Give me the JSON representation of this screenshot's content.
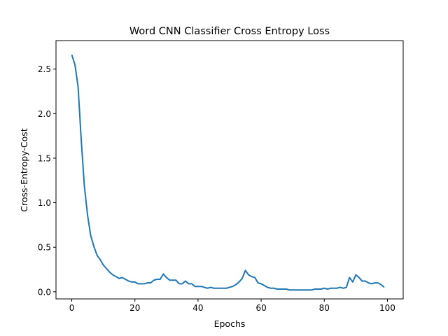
{
  "chart_data": {
    "type": "line",
    "title": "Word CNN Classifier Cross Entropy Loss",
    "xlabel": "Epochs",
    "ylabel": "Cross-Entropy-Cost",
    "xlim": [
      -5,
      105
    ],
    "ylim": [
      -0.08,
      2.82
    ],
    "xticks": [
      0,
      20,
      40,
      60,
      80,
      100
    ],
    "yticks": [
      0.0,
      0.5,
      1.0,
      1.5,
      2.0,
      2.5
    ],
    "xtick_labels": [
      "0",
      "20",
      "40",
      "60",
      "80",
      "100"
    ],
    "ytick_labels": [
      "0.0",
      "0.5",
      "1.0",
      "1.5",
      "2.0",
      "2.5"
    ],
    "grid": false,
    "legend": "none",
    "line_color": "#1f77b4",
    "series": [
      {
        "x": [
          0,
          1,
          2,
          3,
          4,
          5,
          6,
          7,
          8,
          9,
          10,
          11,
          12,
          13,
          14,
          15,
          16,
          17,
          18,
          19,
          20,
          21,
          22,
          23,
          24,
          25,
          26,
          27,
          28,
          29,
          30,
          31,
          32,
          33,
          34,
          35,
          36,
          37,
          38,
          39,
          40,
          41,
          42,
          43,
          44,
          45,
          46,
          47,
          48,
          49,
          50,
          51,
          52,
          53,
          54,
          55,
          56,
          57,
          58,
          59,
          60,
          61,
          62,
          63,
          64,
          65,
          66,
          67,
          68,
          69,
          70,
          71,
          72,
          73,
          74,
          75,
          76,
          77,
          78,
          79,
          80,
          81,
          82,
          83,
          84,
          85,
          86,
          87,
          88,
          89,
          90,
          91,
          92,
          93,
          94,
          95,
          96,
          97,
          98,
          99
        ],
        "y": [
          2.66,
          2.55,
          2.3,
          1.7,
          1.18,
          0.86,
          0.63,
          0.51,
          0.41,
          0.36,
          0.3,
          0.26,
          0.22,
          0.19,
          0.17,
          0.15,
          0.16,
          0.14,
          0.12,
          0.11,
          0.11,
          0.09,
          0.09,
          0.09,
          0.1,
          0.1,
          0.13,
          0.14,
          0.14,
          0.2,
          0.16,
          0.13,
          0.13,
          0.13,
          0.09,
          0.09,
          0.12,
          0.09,
          0.09,
          0.06,
          0.06,
          0.06,
          0.05,
          0.04,
          0.05,
          0.04,
          0.04,
          0.04,
          0.04,
          0.04,
          0.05,
          0.06,
          0.08,
          0.11,
          0.15,
          0.24,
          0.19,
          0.17,
          0.16,
          0.1,
          0.09,
          0.07,
          0.05,
          0.04,
          0.04,
          0.03,
          0.03,
          0.03,
          0.03,
          0.02,
          0.02,
          0.02,
          0.02,
          0.02,
          0.02,
          0.02,
          0.02,
          0.03,
          0.03,
          0.03,
          0.04,
          0.03,
          0.04,
          0.04,
          0.04,
          0.05,
          0.04,
          0.05,
          0.16,
          0.11,
          0.19,
          0.16,
          0.12,
          0.12,
          0.1,
          0.09,
          0.1,
          0.1,
          0.08,
          0.05
        ]
      }
    ]
  }
}
